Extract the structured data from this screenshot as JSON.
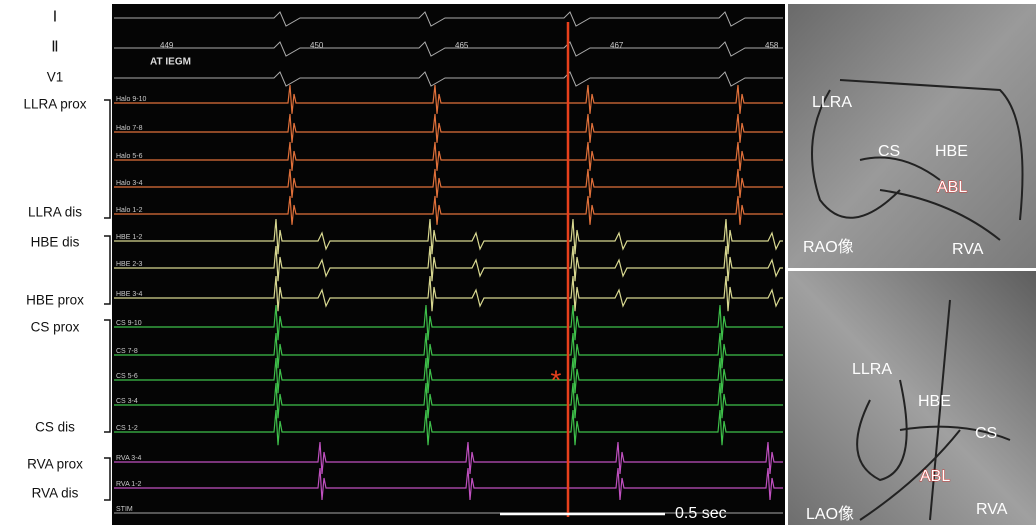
{
  "left_labels": [
    "Ⅰ",
    "Ⅱ",
    "V1",
    "LLRA prox",
    "LLRA dis",
    "HBE dis",
    "HBE prox",
    "CS prox",
    "CS dis",
    "RVA prox",
    "RVA dis"
  ],
  "egm": {
    "title": "AT IEGM",
    "cycle_lengths": [
      449,
      450,
      465,
      467,
      458
    ],
    "channels": [
      "Halo 9-10",
      "Halo 7-8",
      "Halo 5-6",
      "Halo 3-4",
      "Halo 1-2",
      "HBE 1-2",
      "HBE 2-3",
      "HBE 3-4",
      "CS 9-10",
      "CS 7-8",
      "CS 5-6",
      "CS 3-4",
      "CS 1-2",
      "RVA 3-4",
      "RVA 1-2",
      "STIM"
    ],
    "marker": "*",
    "scale": "0.5 sec"
  },
  "fluoro": [
    {
      "labels": [
        "LLRA",
        "CS",
        "HBE",
        "ABL",
        "RAO像",
        "RVA"
      ]
    },
    {
      "labels": [
        "LLRA",
        "HBE",
        "CS",
        "ABL",
        "LAO像",
        "RVA"
      ]
    }
  ]
}
